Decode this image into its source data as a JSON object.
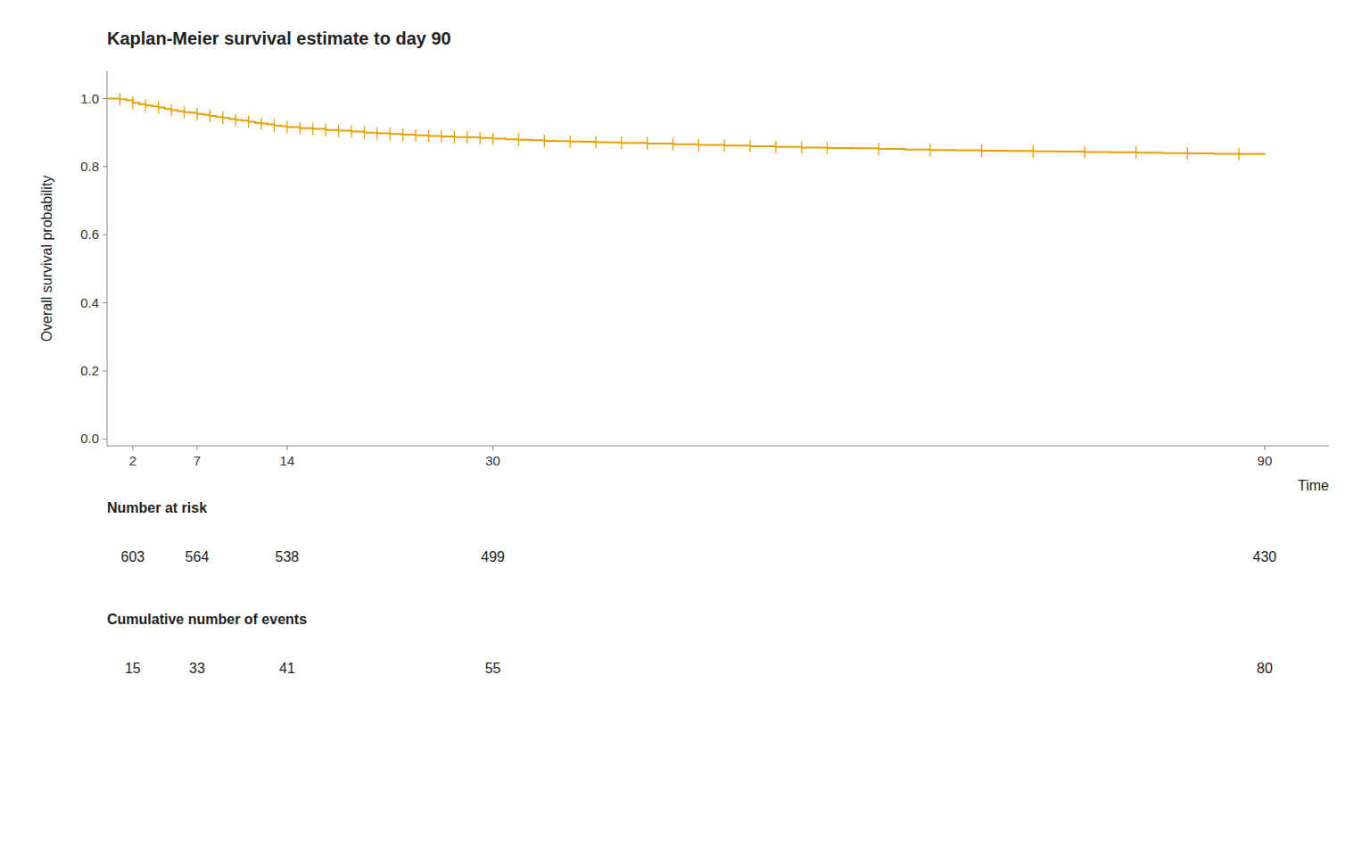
{
  "chart_data": {
    "type": "line",
    "title": "Kaplan-Meier survival estimate to day 90",
    "ylabel": "Overall survival probability",
    "xlabel": "Time",
    "xlim": [
      0,
      95
    ],
    "ylim": [
      -0.02,
      1.08
    ],
    "xticks": [
      2,
      7,
      14,
      30,
      90
    ],
    "yticks": [
      {
        "value": 0.0,
        "label": "0.0"
      },
      0.2,
      0.4,
      0.6,
      0.8,
      {
        "value": 1.0,
        "label": "1.0"
      }
    ],
    "grid": false,
    "series": [
      {
        "type": "step",
        "color": "#E8A000",
        "x": [
          0,
          1,
          1.5,
          2,
          2.5,
          3,
          3.5,
          4,
          4.5,
          5,
          5.5,
          6,
          6.5,
          7,
          7.5,
          8,
          8.5,
          9,
          9.5,
          10,
          10.5,
          11,
          11.5,
          12,
          12.5,
          13,
          13.5,
          14,
          15,
          16,
          17,
          18,
          19,
          20,
          21,
          22,
          23,
          24,
          25,
          26,
          27,
          28,
          29,
          30,
          31,
          32,
          33,
          34,
          35,
          36,
          37,
          38,
          39,
          40,
          42,
          44,
          46,
          48,
          50,
          52,
          54,
          56,
          58,
          60,
          62,
          64,
          66,
          68,
          70,
          72,
          74,
          76,
          78,
          80,
          82,
          84,
          86,
          88,
          90
        ],
        "values": [
          1.0,
          0.998,
          0.995,
          0.988,
          0.984,
          0.98,
          0.977,
          0.974,
          0.97,
          0.966,
          0.963,
          0.96,
          0.958,
          0.955,
          0.952,
          0.949,
          0.946,
          0.943,
          0.94,
          0.937,
          0.935,
          0.932,
          0.929,
          0.927,
          0.924,
          0.921,
          0.919,
          0.916,
          0.913,
          0.911,
          0.908,
          0.906,
          0.903,
          0.9,
          0.898,
          0.896,
          0.894,
          0.892,
          0.89,
          0.889,
          0.887,
          0.886,
          0.884,
          0.882,
          0.88,
          0.879,
          0.878,
          0.876,
          0.875,
          0.874,
          0.873,
          0.872,
          0.871,
          0.87,
          0.868,
          0.866,
          0.864,
          0.862,
          0.86,
          0.858,
          0.856,
          0.855,
          0.854,
          0.852,
          0.85,
          0.849,
          0.848,
          0.847,
          0.846,
          0.845,
          0.844,
          0.843,
          0.842,
          0.841,
          0.84,
          0.839,
          0.838,
          0.837,
          0.836
        ]
      },
      {
        "type": "scatter",
        "marker": "vline",
        "color": "#E8A000",
        "x": [
          1,
          2,
          3,
          4,
          5,
          6,
          7,
          8,
          9,
          10,
          11,
          12,
          13,
          14,
          15,
          16,
          17,
          18,
          19,
          20,
          21,
          22,
          23,
          24,
          25,
          26,
          27,
          28,
          29,
          30,
          32,
          34,
          36,
          38,
          40,
          42,
          44,
          46,
          48,
          50,
          52,
          54,
          56,
          60,
          64,
          68,
          72,
          76,
          80,
          84,
          88
        ],
        "values": [
          0.998,
          0.988,
          0.98,
          0.974,
          0.966,
          0.96,
          0.955,
          0.949,
          0.943,
          0.937,
          0.932,
          0.927,
          0.921,
          0.916,
          0.913,
          0.911,
          0.908,
          0.906,
          0.903,
          0.9,
          0.898,
          0.896,
          0.894,
          0.892,
          0.89,
          0.889,
          0.887,
          0.886,
          0.884,
          0.882,
          0.879,
          0.876,
          0.874,
          0.872,
          0.87,
          0.868,
          0.866,
          0.864,
          0.862,
          0.86,
          0.858,
          0.856,
          0.855,
          0.852,
          0.849,
          0.847,
          0.845,
          0.843,
          0.841,
          0.839,
          0.837
        ]
      }
    ],
    "risk_table": {
      "x": [
        2,
        7,
        14,
        30,
        90
      ],
      "rows": [
        {
          "label": "Number at risk",
          "values": [
            603,
            564,
            538,
            499,
            430
          ]
        },
        {
          "label": "Cumulative number of events",
          "values": [
            15,
            33,
            41,
            55,
            80
          ]
        }
      ]
    }
  }
}
